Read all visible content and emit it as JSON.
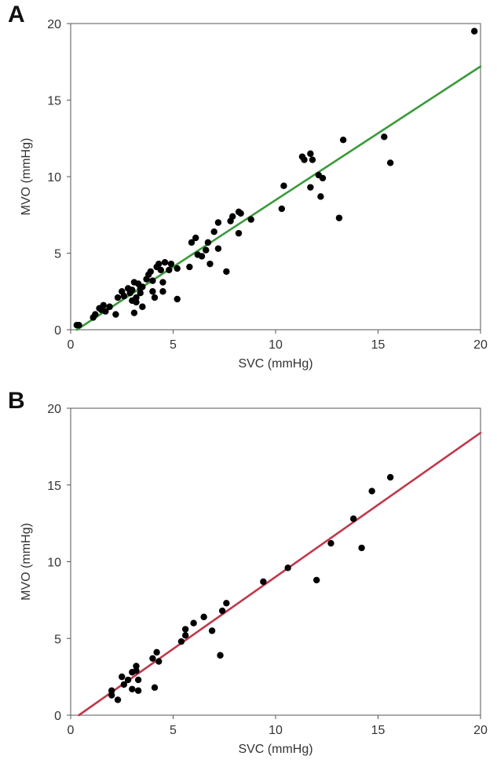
{
  "chart_data": [
    {
      "panel": "A",
      "type": "scatter",
      "xlabel": "SVC (mmHg)",
      "ylabel": "MVO (mmHg)",
      "xlim": [
        0,
        20
      ],
      "ylim": [
        0,
        20
      ],
      "xticks": [
        "0",
        "5",
        "10",
        "15",
        "20"
      ],
      "yticks": [
        "0",
        "5",
        "10",
        "15",
        "20"
      ],
      "fit_line": {
        "color": "#3a9a3a",
        "x": [
          0.3,
          20
        ],
        "y": [
          0.0,
          17.2
        ]
      },
      "points": [
        [
          0.3,
          0.3
        ],
        [
          0.4,
          0.3
        ],
        [
          1.1,
          0.8
        ],
        [
          1.2,
          1.0
        ],
        [
          1.4,
          1.4
        ],
        [
          1.5,
          1.3
        ],
        [
          1.6,
          1.6
        ],
        [
          1.7,
          1.2
        ],
        [
          1.9,
          1.5
        ],
        [
          2.2,
          1.0
        ],
        [
          2.3,
          2.1
        ],
        [
          2.5,
          2.5
        ],
        [
          2.6,
          2.2
        ],
        [
          2.8,
          2.7
        ],
        [
          2.9,
          2.4
        ],
        [
          3.0,
          2.6
        ],
        [
          3.0,
          1.9
        ],
        [
          3.1,
          3.1
        ],
        [
          3.1,
          1.1
        ],
        [
          3.2,
          2.1
        ],
        [
          3.2,
          1.8
        ],
        [
          3.3,
          3.0
        ],
        [
          3.4,
          2.7
        ],
        [
          3.4,
          2.4
        ],
        [
          3.5,
          2.8
        ],
        [
          3.5,
          1.5
        ],
        [
          3.7,
          3.3
        ],
        [
          3.8,
          3.6
        ],
        [
          3.9,
          3.8
        ],
        [
          4.0,
          2.5
        ],
        [
          4.0,
          3.2
        ],
        [
          4.1,
          2.1
        ],
        [
          4.2,
          4.1
        ],
        [
          4.3,
          4.3
        ],
        [
          4.4,
          3.9
        ],
        [
          4.5,
          3.1
        ],
        [
          4.5,
          2.5
        ],
        [
          4.6,
          4.4
        ],
        [
          4.8,
          3.9
        ],
        [
          4.9,
          4.3
        ],
        [
          5.2,
          4.0
        ],
        [
          5.2,
          2.0
        ],
        [
          5.8,
          4.1
        ],
        [
          5.9,
          5.7
        ],
        [
          6.1,
          6.0
        ],
        [
          6.2,
          4.9
        ],
        [
          6.4,
          4.8
        ],
        [
          6.6,
          5.2
        ],
        [
          6.7,
          5.7
        ],
        [
          6.8,
          4.3
        ],
        [
          7.0,
          6.4
        ],
        [
          7.2,
          5.3
        ],
        [
          7.2,
          7.0
        ],
        [
          7.6,
          3.8
        ],
        [
          7.8,
          7.1
        ],
        [
          7.9,
          7.4
        ],
        [
          8.2,
          6.3
        ],
        [
          8.2,
          7.7
        ],
        [
          8.3,
          7.6
        ],
        [
          8.8,
          7.2
        ],
        [
          10.3,
          7.9
        ],
        [
          10.4,
          9.4
        ],
        [
          11.3,
          11.3
        ],
        [
          11.4,
          11.1
        ],
        [
          11.7,
          11.5
        ],
        [
          11.7,
          9.3
        ],
        [
          11.8,
          11.1
        ],
        [
          12.1,
          10.1
        ],
        [
          12.2,
          8.7
        ],
        [
          12.3,
          9.9
        ],
        [
          13.1,
          7.3
        ],
        [
          13.3,
          12.4
        ],
        [
          15.3,
          12.6
        ],
        [
          15.6,
          10.9
        ],
        [
          19.7,
          19.5
        ]
      ]
    },
    {
      "panel": "B",
      "type": "scatter",
      "xlabel": "SVC (mmHg)",
      "ylabel": "MVO (mmHg)",
      "xlim": [
        0,
        20
      ],
      "ylim": [
        0,
        20
      ],
      "xticks": [
        "0",
        "5",
        "10",
        "15",
        "20"
      ],
      "yticks": [
        "0",
        "5",
        "10",
        "15",
        "20"
      ],
      "fit_line": {
        "color": "#c0384a",
        "x": [
          0.4,
          20
        ],
        "y": [
          0.0,
          18.4
        ]
      },
      "points": [
        [
          2.0,
          1.6
        ],
        [
          2.0,
          1.3
        ],
        [
          2.3,
          1.0
        ],
        [
          2.5,
          2.5
        ],
        [
          2.6,
          2.0
        ],
        [
          2.8,
          2.3
        ],
        [
          3.0,
          1.7
        ],
        [
          3.0,
          2.8
        ],
        [
          3.2,
          3.2
        ],
        [
          3.2,
          2.9
        ],
        [
          3.3,
          2.3
        ],
        [
          3.3,
          1.6
        ],
        [
          4.0,
          3.7
        ],
        [
          4.1,
          1.8
        ],
        [
          4.2,
          4.1
        ],
        [
          4.3,
          3.5
        ],
        [
          5.4,
          4.8
        ],
        [
          5.6,
          5.2
        ],
        [
          5.6,
          5.6
        ],
        [
          6.0,
          6.0
        ],
        [
          6.5,
          6.4
        ],
        [
          6.9,
          5.5
        ],
        [
          7.3,
          3.9
        ],
        [
          7.4,
          6.8
        ],
        [
          7.6,
          7.3
        ],
        [
          9.4,
          8.7
        ],
        [
          10.6,
          9.6
        ],
        [
          12.0,
          8.8
        ],
        [
          12.7,
          11.2
        ],
        [
          13.8,
          12.8
        ],
        [
          14.2,
          10.9
        ],
        [
          14.7,
          14.6
        ],
        [
          15.6,
          15.5
        ]
      ]
    }
  ]
}
